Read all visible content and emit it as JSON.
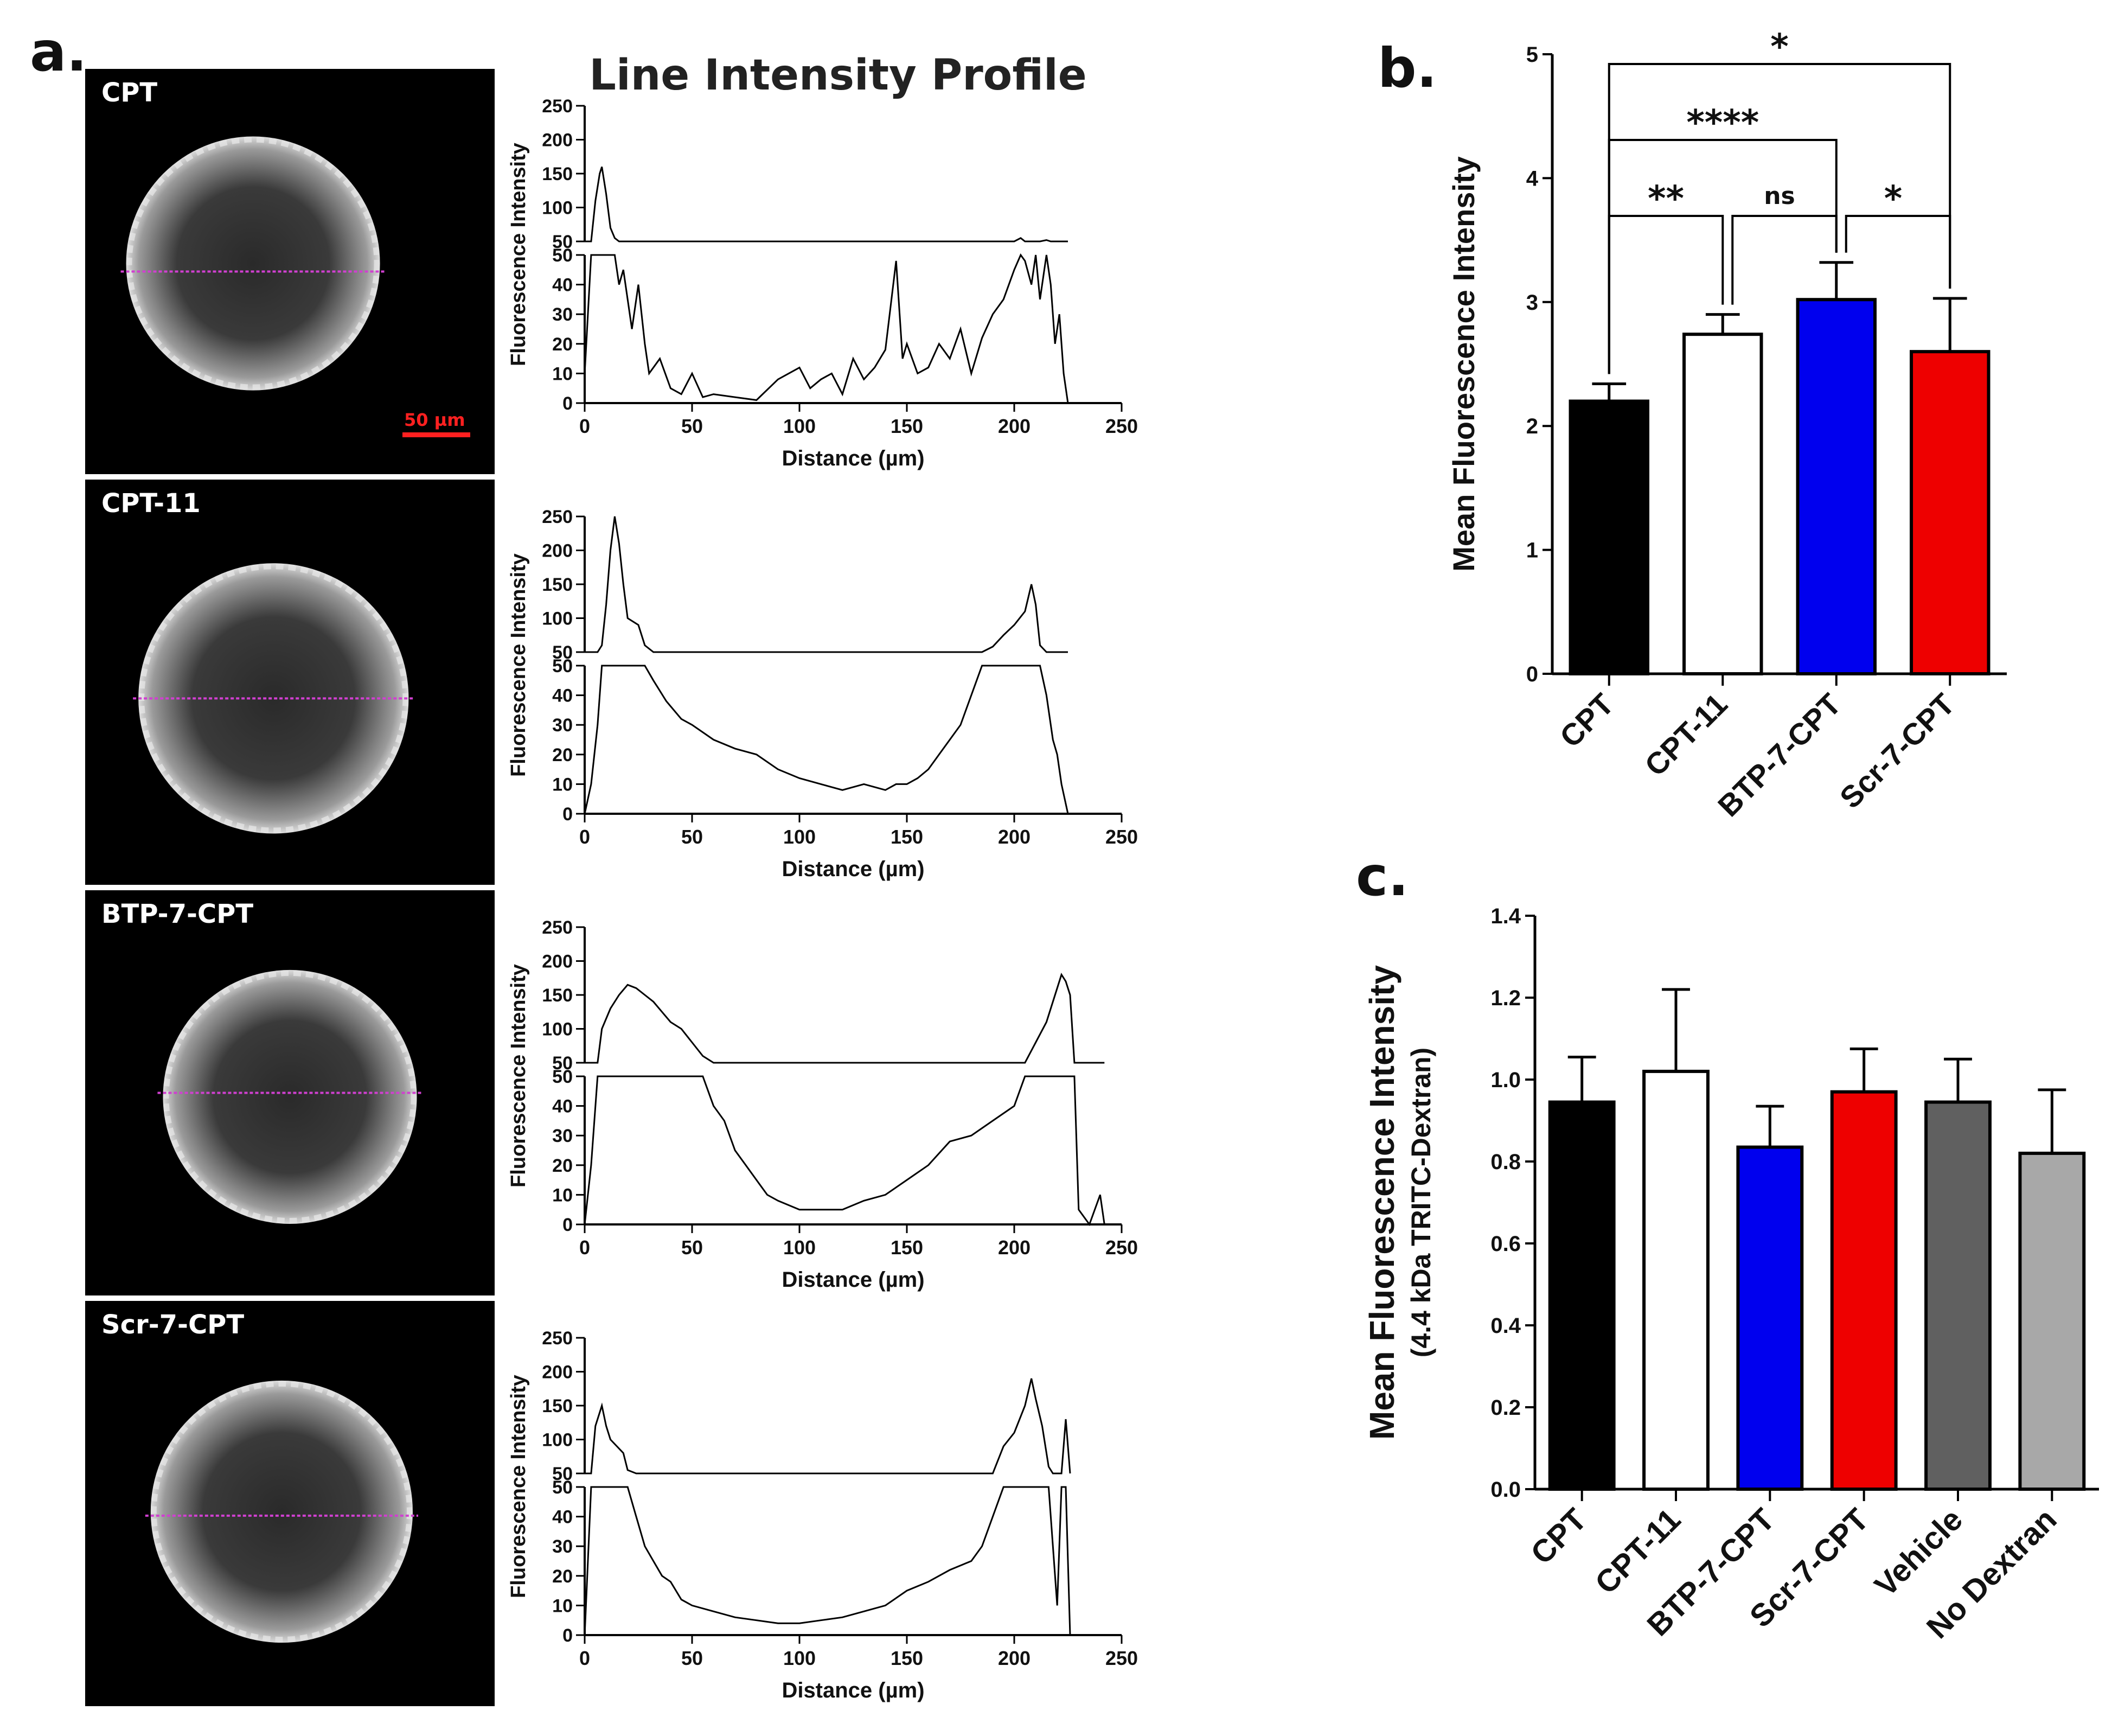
{
  "panel_letters": {
    "a": "a.",
    "b": "b.",
    "c": "c."
  },
  "colors": {
    "magenta_line": "#d040d0",
    "scale_bar": "#ff2020",
    "blue": "#0000ee",
    "red": "#ee0000",
    "vehicle": "#606060",
    "no_dextran": "#a8a8a8"
  },
  "chart_data": [
    {
      "id": "a",
      "type": "line",
      "title": "Line Intensity Profile",
      "xlabel": "Distance (µm)",
      "ylabel": "Fluorescence Intensity",
      "xlim": [
        0,
        250
      ],
      "xticks": [
        0,
        50,
        100,
        150,
        200,
        250
      ],
      "y_segments": [
        {
          "ylim": [
            0,
            50
          ],
          "yticks": [
            0,
            10,
            20,
            30,
            40,
            50
          ]
        },
        {
          "ylim": [
            50,
            250
          ],
          "yticks": [
            50,
            100,
            150,
            200,
            250
          ]
        }
      ],
      "grid": false,
      "scale_bar_label": "50 µm",
      "rows": [
        {
          "label": "CPT",
          "points": [
            [
              0,
              10
            ],
            [
              3,
              50
            ],
            [
              5,
              110
            ],
            [
              7,
              150
            ],
            [
              8,
              160
            ],
            [
              10,
              120
            ],
            [
              12,
              70
            ],
            [
              14,
              55
            ],
            [
              16,
              40
            ],
            [
              18,
              45
            ],
            [
              20,
              35
            ],
            [
              22,
              25
            ],
            [
              25,
              40
            ],
            [
              28,
              20
            ],
            [
              30,
              10
            ],
            [
              35,
              15
            ],
            [
              40,
              5
            ],
            [
              45,
              3
            ],
            [
              50,
              10
            ],
            [
              55,
              2
            ],
            [
              60,
              3
            ],
            [
              70,
              2
            ],
            [
              80,
              1
            ],
            [
              90,
              8
            ],
            [
              95,
              10
            ],
            [
              100,
              12
            ],
            [
              105,
              5
            ],
            [
              110,
              8
            ],
            [
              115,
              10
            ],
            [
              120,
              3
            ],
            [
              125,
              15
            ],
            [
              130,
              8
            ],
            [
              135,
              12
            ],
            [
              140,
              18
            ],
            [
              145,
              48
            ],
            [
              148,
              15
            ],
            [
              150,
              20
            ],
            [
              155,
              10
            ],
            [
              160,
              12
            ],
            [
              165,
              20
            ],
            [
              170,
              15
            ],
            [
              175,
              25
            ],
            [
              180,
              10
            ],
            [
              185,
              22
            ],
            [
              190,
              30
            ],
            [
              195,
              35
            ],
            [
              200,
              45
            ],
            [
              203,
              55
            ],
            [
              205,
              48
            ],
            [
              208,
              40
            ],
            [
              210,
              50
            ],
            [
              212,
              35
            ],
            [
              215,
              52
            ],
            [
              217,
              40
            ],
            [
              219,
              20
            ],
            [
              221,
              30
            ],
            [
              223,
              10
            ],
            [
              225,
              0
            ]
          ]
        },
        {
          "label": "CPT-11",
          "points": [
            [
              0,
              0
            ],
            [
              3,
              10
            ],
            [
              6,
              30
            ],
            [
              8,
              60
            ],
            [
              10,
              120
            ],
            [
              12,
              200
            ],
            [
              14,
              250
            ],
            [
              16,
              210
            ],
            [
              18,
              150
            ],
            [
              20,
              100
            ],
            [
              25,
              90
            ],
            [
              28,
              60
            ],
            [
              32,
              45
            ],
            [
              38,
              38
            ],
            [
              45,
              32
            ],
            [
              50,
              30
            ],
            [
              60,
              25
            ],
            [
              70,
              22
            ],
            [
              80,
              20
            ],
            [
              90,
              15
            ],
            [
              100,
              12
            ],
            [
              110,
              10
            ],
            [
              120,
              8
            ],
            [
              130,
              10
            ],
            [
              140,
              8
            ],
            [
              145,
              10
            ],
            [
              150,
              10
            ],
            [
              155,
              12
            ],
            [
              160,
              15
            ],
            [
              165,
              20
            ],
            [
              170,
              25
            ],
            [
              175,
              30
            ],
            [
              180,
              40
            ],
            [
              185,
              50
            ],
            [
              190,
              58
            ],
            [
              195,
              75
            ],
            [
              200,
              90
            ],
            [
              205,
              110
            ],
            [
              208,
              150
            ],
            [
              210,
              120
            ],
            [
              212,
              60
            ],
            [
              215,
              40
            ],
            [
              218,
              25
            ],
            [
              220,
              20
            ],
            [
              222,
              10
            ],
            [
              225,
              0
            ]
          ]
        },
        {
          "label": "BTP-7-CPT",
          "points": [
            [
              0,
              0
            ],
            [
              3,
              20
            ],
            [
              6,
              50
            ],
            [
              8,
              100
            ],
            [
              12,
              130
            ],
            [
              16,
              150
            ],
            [
              20,
              165
            ],
            [
              24,
              160
            ],
            [
              28,
              150
            ],
            [
              32,
              140
            ],
            [
              36,
              125
            ],
            [
              40,
              110
            ],
            [
              45,
              100
            ],
            [
              50,
              80
            ],
            [
              55,
              60
            ],
            [
              60,
              40
            ],
            [
              65,
              35
            ],
            [
              70,
              25
            ],
            [
              75,
              20
            ],
            [
              80,
              15
            ],
            [
              85,
              10
            ],
            [
              90,
              8
            ],
            [
              100,
              5
            ],
            [
              110,
              5
            ],
            [
              120,
              5
            ],
            [
              130,
              8
            ],
            [
              140,
              10
            ],
            [
              150,
              15
            ],
            [
              160,
              20
            ],
            [
              170,
              28
            ],
            [
              180,
              30
            ],
            [
              190,
              35
            ],
            [
              200,
              40
            ],
            [
              205,
              50
            ],
            [
              210,
              80
            ],
            [
              215,
              110
            ],
            [
              220,
              160
            ],
            [
              222,
              180
            ],
            [
              224,
              170
            ],
            [
              226,
              150
            ],
            [
              228,
              50
            ],
            [
              230,
              5
            ],
            [
              235,
              0
            ],
            [
              240,
              10
            ],
            [
              242,
              0
            ]
          ]
        },
        {
          "label": "Scr-7-CPT",
          "points": [
            [
              0,
              0
            ],
            [
              3,
              50
            ],
            [
              5,
              120
            ],
            [
              8,
              150
            ],
            [
              10,
              120
            ],
            [
              12,
              100
            ],
            [
              15,
              90
            ],
            [
              18,
              80
            ],
            [
              20,
              55
            ],
            [
              24,
              40
            ],
            [
              28,
              30
            ],
            [
              32,
              25
            ],
            [
              36,
              20
            ],
            [
              40,
              18
            ],
            [
              45,
              12
            ],
            [
              50,
              10
            ],
            [
              60,
              8
            ],
            [
              70,
              6
            ],
            [
              80,
              5
            ],
            [
              90,
              4
            ],
            [
              100,
              4
            ],
            [
              110,
              5
            ],
            [
              120,
              6
            ],
            [
              130,
              8
            ],
            [
              140,
              10
            ],
            [
              150,
              15
            ],
            [
              160,
              18
            ],
            [
              170,
              22
            ],
            [
              180,
              25
            ],
            [
              185,
              30
            ],
            [
              190,
              40
            ],
            [
              195,
              90
            ],
            [
              200,
              110
            ],
            [
              205,
              150
            ],
            [
              208,
              190
            ],
            [
              210,
              160
            ],
            [
              213,
              120
            ],
            [
              216,
              60
            ],
            [
              218,
              30
            ],
            [
              220,
              10
            ],
            [
              222,
              50
            ],
            [
              224,
              130
            ],
            [
              226,
              0
            ]
          ]
        }
      ]
    },
    {
      "id": "b",
      "type": "bar",
      "categories": [
        "CPT",
        "CPT-11",
        "BTP-7-CPT",
        "Scr-7-CPT"
      ],
      "values": [
        2.2,
        2.74,
        3.02,
        2.6
      ],
      "errors": [
        0.14,
        0.16,
        0.3,
        0.43
      ],
      "bar_colors": [
        "#000000",
        "#ffffff",
        "#0000ee",
        "#ee0000"
      ],
      "ylabel": "Mean Fluorescence Intensity",
      "ylim": [
        0,
        5
      ],
      "yticks": [
        0,
        1,
        2,
        3,
        4,
        5
      ],
      "significance": [
        {
          "from": 0,
          "to": 3,
          "label": "*"
        },
        {
          "from": 0,
          "to": 2,
          "label": "****"
        },
        {
          "from": 0,
          "to": 1,
          "label": "**"
        },
        {
          "from": 1,
          "to": 2,
          "label": "ns"
        },
        {
          "from": 2,
          "to": 3,
          "label": "*"
        }
      ]
    },
    {
      "id": "c",
      "type": "bar",
      "categories": [
        "CPT",
        "CPT-11",
        "BTP-7-CPT",
        "Scr-7-CPT",
        "Vehicle",
        "No Dextran"
      ],
      "values": [
        0.945,
        1.02,
        0.835,
        0.97,
        0.945,
        0.82
      ],
      "errors": [
        0.11,
        0.2,
        0.1,
        0.105,
        0.105,
        0.155
      ],
      "bar_colors": [
        "#000000",
        "#ffffff",
        "#0000ee",
        "#ee0000",
        "#606060",
        "#a8a8a8"
      ],
      "ylabel": "Mean Fluorescence Intensity",
      "ylabel2": "(4.4 kDa TRITC-Dextran)",
      "ylim": [
        0,
        1.4
      ],
      "yticks": [
        "0.0",
        "0.2",
        "0.4",
        "0.6",
        "0.8",
        "1.0",
        "1.2",
        "1.4"
      ]
    }
  ]
}
